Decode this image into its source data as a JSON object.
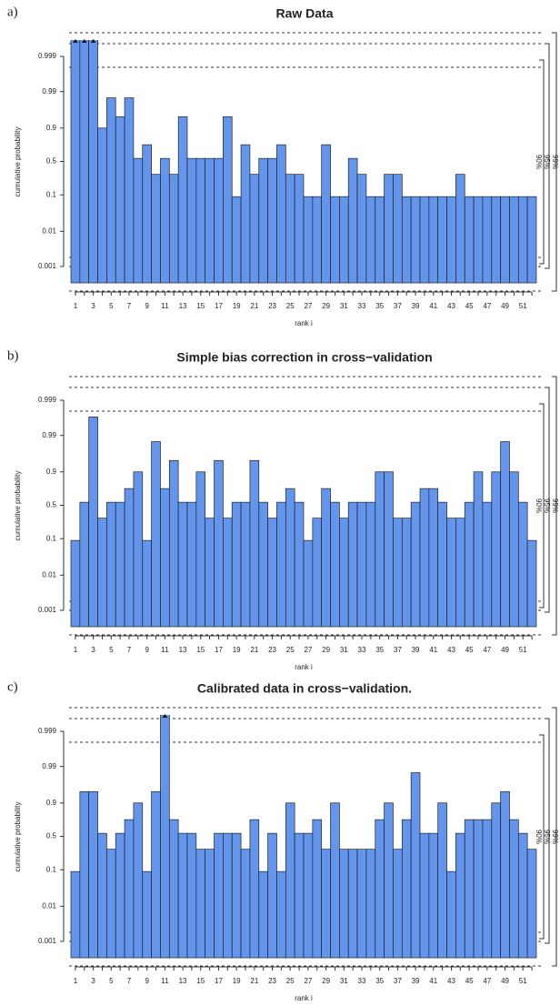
{
  "chart_data": [
    {
      "type": "bar",
      "panel_label": "a)",
      "title": "Raw Data",
      "y_label": "cumulative probability",
      "x_label": "rank i",
      "scale": "logit",
      "color": "#6495ed",
      "band_labels": [
        "90%",
        "95%",
        "99%"
      ],
      "ylim": [
        0.00034,
        0.99966
      ],
      "yticks": [
        0.001,
        0.01,
        0.1,
        0.5,
        0.9,
        0.99,
        0.999
      ],
      "categories": [
        "1",
        null,
        "3",
        null,
        "5",
        null,
        "7",
        null,
        "9",
        null,
        "11",
        null,
        "13",
        null,
        "15",
        null,
        "17",
        null,
        "19",
        null,
        "21",
        null,
        "23",
        null,
        "25",
        null,
        "27",
        null,
        "29",
        null,
        "31",
        null,
        "33",
        null,
        "35",
        null,
        "37",
        null,
        "39",
        null,
        "41",
        null,
        "43",
        null,
        "45",
        null,
        "47",
        null,
        "49",
        null,
        "51",
        null
      ],
      "values": [
        0.9999,
        0.9999,
        0.9999,
        0.9,
        0.985,
        0.95,
        0.985,
        0.55,
        0.75,
        0.3,
        0.55,
        0.3,
        0.95,
        0.55,
        0.55,
        0.55,
        0.55,
        0.95,
        0.09,
        0.75,
        0.3,
        0.55,
        0.55,
        0.75,
        0.3,
        0.3,
        0.09,
        0.09,
        0.75,
        0.09,
        0.09,
        0.55,
        0.3,
        0.09,
        0.09,
        0.3,
        0.3,
        0.09,
        0.09,
        0.09,
        0.09,
        0.09,
        0.09,
        0.3,
        0.09,
        0.09,
        0.09,
        0.09,
        0.09,
        0.09,
        0.09,
        0.09
      ]
    },
    {
      "type": "bar",
      "panel_label": "b)",
      "title": "Simple bias correction in cross−validation",
      "y_label": "cumulative probability",
      "x_label": "rank i",
      "scale": "logit",
      "color": "#6495ed",
      "band_labels": [
        "90%",
        "95%",
        "99%"
      ],
      "ylim": [
        0.00034,
        0.99966
      ],
      "yticks": [
        0.001,
        0.01,
        0.1,
        0.5,
        0.9,
        0.99,
        0.999
      ],
      "categories": [
        "1",
        null,
        "3",
        null,
        "5",
        null,
        "7",
        null,
        "9",
        null,
        "11",
        null,
        "13",
        null,
        "15",
        null,
        "17",
        null,
        "19",
        null,
        "21",
        null,
        "23",
        null,
        "25",
        null,
        "27",
        null,
        "29",
        null,
        "31",
        null,
        "33",
        null,
        "35",
        null,
        "37",
        null,
        "39",
        null,
        "41",
        null,
        "43",
        null,
        "45",
        null,
        "47",
        null,
        "49",
        null,
        "51",
        null
      ],
      "values": [
        0.09,
        0.55,
        0.997,
        0.3,
        0.55,
        0.55,
        0.75,
        0.9,
        0.09,
        0.985,
        0.75,
        0.95,
        0.55,
        0.55,
        0.9,
        0.3,
        0.95,
        0.3,
        0.55,
        0.55,
        0.95,
        0.55,
        0.3,
        0.55,
        0.75,
        0.55,
        0.09,
        0.3,
        0.75,
        0.55,
        0.3,
        0.55,
        0.55,
        0.55,
        0.9,
        0.9,
        0.3,
        0.3,
        0.55,
        0.75,
        0.75,
        0.55,
        0.3,
        0.3,
        0.55,
        0.9,
        0.55,
        0.9,
        0.985,
        0.9,
        0.55,
        0.09
      ]
    },
    {
      "type": "bar",
      "panel_label": "c)",
      "title": "Calibrated data in cross−validation.",
      "y_label": "cumulative probability",
      "x_label": "rank i",
      "scale": "logit",
      "color": "#6495ed",
      "band_labels": [
        "90%",
        "95%",
        "99%"
      ],
      "ylim": [
        0.00034,
        0.99966
      ],
      "yticks": [
        0.001,
        0.01,
        0.1,
        0.5,
        0.9,
        0.99,
        0.999
      ],
      "categories": [
        "1",
        null,
        "3",
        null,
        "5",
        null,
        "7",
        null,
        "9",
        null,
        "11",
        null,
        "13",
        null,
        "15",
        null,
        "17",
        null,
        "19",
        null,
        "21",
        null,
        "23",
        null,
        "25",
        null,
        "27",
        null,
        "29",
        null,
        "31",
        null,
        "33",
        null,
        "35",
        null,
        "37",
        null,
        "39",
        null,
        "41",
        null,
        "43",
        null,
        "45",
        null,
        "47",
        null,
        "49",
        null,
        "51",
        null
      ],
      "values": [
        0.09,
        0.95,
        0.95,
        0.55,
        0.3,
        0.55,
        0.75,
        0.9,
        0.09,
        0.95,
        0.9999,
        0.75,
        0.55,
        0.55,
        0.3,
        0.3,
        0.55,
        0.55,
        0.55,
        0.3,
        0.75,
        0.09,
        0.55,
        0.09,
        0.9,
        0.55,
        0.55,
        0.75,
        0.3,
        0.9,
        0.3,
        0.3,
        0.3,
        0.3,
        0.75,
        0.9,
        0.3,
        0.75,
        0.985,
        0.55,
        0.55,
        0.9,
        0.09,
        0.55,
        0.75,
        0.75,
        0.75,
        0.9,
        0.95,
        0.75,
        0.55,
        0.3
      ]
    }
  ]
}
